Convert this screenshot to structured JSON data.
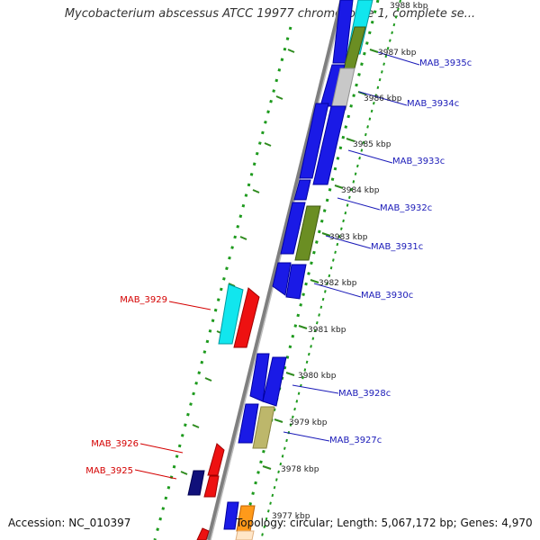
{
  "title": "Mycobacterium abscessus ATCC 19977 chromosome 1, complete se...",
  "footer": {
    "accession": "Accession: NC_010397",
    "topology": "Topology: circular; Length: 5,067,172 bp; Genes: 4,970"
  },
  "colors": {
    "backbone": "#8c8c8c",
    "tick_major": "#2e8b1e",
    "tick_minor": "#1d9a1d",
    "label_forward": "#d40000",
    "label_reverse": "#1a1ab8",
    "gene_blue": "#1a1ae6",
    "gene_red": "#ee1111",
    "gene_cyan": "#11e6ee",
    "gene_olive": "#6b8e23",
    "gene_gray": "#c8c8c8",
    "gene_khaki": "#bdb76b",
    "gene_navy": "#10107a",
    "gene_orange": "#ff9a1a"
  },
  "kbp_labels": [
    "3988 kbp",
    "3987 kbp",
    "3986 kbp",
    "3985 kbp",
    "3984 kbp",
    "3983 kbp",
    "3982 kbp",
    "3981 kbp",
    "3980 kbp",
    "3979 kbp",
    "3978 kbp",
    "3977 kbp"
  ],
  "gene_labels_reverse": [
    "MAB_3935c",
    "MAB_3934c",
    "MAB_3933c",
    "MAB_3932c",
    "MAB_3931c",
    "MAB_3930c",
    "MAB_3928c",
    "MAB_3927c"
  ],
  "gene_labels_forward": [
    "MAB_3929",
    "MAB_3926",
    "MAB_3925"
  ]
}
